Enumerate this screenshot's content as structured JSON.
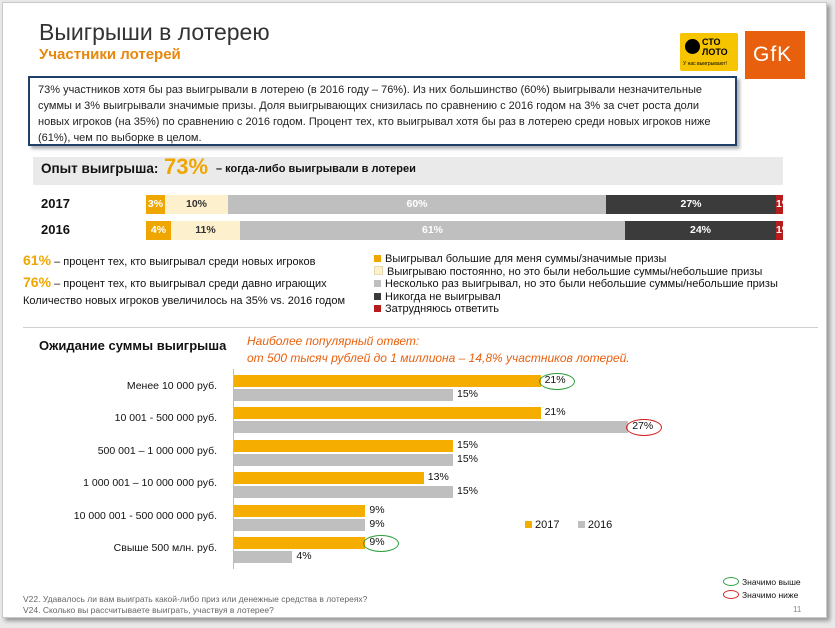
{
  "title": "Выигрыши в лотерею",
  "subtitle": "Участники лотерей",
  "logos": {
    "stoloto_line1": "СТО",
    "stoloto_line2": "ЛОТО",
    "stoloto_tagline": "У нас выигрывают!",
    "gfk": "GfK"
  },
  "summary": "73% участников хотя бы раз выигрывали в лотерею (в 2016 году – 76%). Из них большинство (60%) выигрывали незначительные суммы и 3% выигрывали значимые призы. Доля выигрывающих снизилась по сравнению с 2016 годом на 3% за счет роста доли новых игроков (на 35%) по сравнению с 2016 годом. Процент тех, кто выигрывал хотя бы раз в лотерею среди новых игроков ниже (61%), чем по выборке в целом.",
  "experience": {
    "title": "Опыт выигрыша:",
    "pct": "73%",
    "desc": "– когда-либо выигрывали в лотереи",
    "rows": [
      {
        "year": "2017",
        "values": [
          3,
          10,
          60,
          27,
          1
        ],
        "labels": [
          "3%",
          "10%",
          "60%",
          "27%",
          "1%"
        ]
      },
      {
        "year": "2016",
        "values": [
          4,
          11,
          61,
          24,
          1
        ],
        "labels": [
          "4%",
          "11%",
          "61%",
          "24%",
          "1%"
        ]
      }
    ],
    "segment_colors": [
      "#f0a600",
      "#fdf0cc",
      "#bfbfbf",
      "#3b3b3b",
      "#b71c1c"
    ],
    "label_colors": [
      "#ffffff",
      "#333333",
      "#ffffff",
      "#ffffff",
      "#ffffff"
    ],
    "legend": [
      "Выигрывал большие для меня суммы/значимые призы",
      "Выигрываю постоянно, но это были небольшие суммы/небольшие призы",
      "Несколько раз выигрывал, но это были небольшие суммы/небольшие призы",
      "Никогда не выигрывал",
      "Затрудняюсь ответить"
    ]
  },
  "notes": {
    "new_pct": "61%",
    "new_text": "– процент тех, кто выигрывал среди новых игроков",
    "old_pct": "76%",
    "old_text": "– процент тех, кто выигрывал среди давно играющих",
    "growth": "Количество новых игроков увеличилось на 35% vs. 2016 годом"
  },
  "expectation_title": "Ожидание суммы выигрыша",
  "popular_line1": "Наиболее популярный ответ:",
  "popular_line2": "от 500 тысяч рублей до 1 миллиона – 14,8% участников лотерей.",
  "chart_data": {
    "type": "bar",
    "orientation": "horizontal",
    "categories": [
      "Менее 10 000 руб.",
      "10 001 - 500 000 руб.",
      "500 001 – 1 000 000 руб.",
      "1 000 001 – 10 000 000 руб.",
      "10 000 001 - 500 000 000 руб.",
      "Свыше 500 млн. руб."
    ],
    "series": [
      {
        "name": "2017",
        "color": "#f5ad00",
        "values": [
          21,
          21,
          15,
          13,
          9,
          9
        ]
      },
      {
        "name": "2016",
        "color": "#bfbfbf",
        "values": [
          15,
          27,
          15,
          15,
          9,
          4
        ]
      }
    ],
    "value_suffix": "%",
    "legend_position": "right",
    "significance": [
      {
        "series": "2017",
        "category_index": 0,
        "type": "higher"
      },
      {
        "series": "2016",
        "category_index": 1,
        "type": "lower"
      },
      {
        "series": "2017",
        "category_index": 5,
        "type": "higher"
      }
    ]
  },
  "significance_legend": {
    "higher": "Значимо выше",
    "lower": "Значимо ниже",
    "higher_color": "#2e9e3e",
    "lower_color": "#d42020"
  },
  "footnotes": [
    "V22. Удавалось ли вам выиграть какой-либо приз или денежные средства в лотереях?",
    "V24. Сколько вы рассчитываете выиграть, участвуя в лотерее?"
  ],
  "page_number": "11"
}
